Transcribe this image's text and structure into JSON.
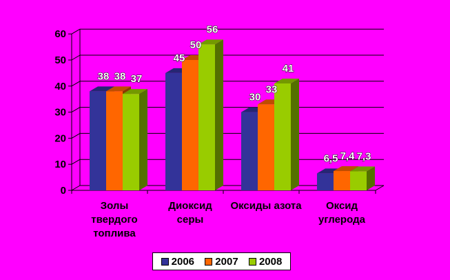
{
  "chart_data": {
    "type": "bar",
    "categories": [
      [
        "Золы",
        "твердого",
        "топлива"
      ],
      [
        "Диоксид",
        "серы"
      ],
      [
        "Оксиды азота"
      ],
      [
        "Оксид",
        "углерода"
      ]
    ],
    "series": [
      {
        "name": "2006",
        "values": [
          38,
          45,
          30,
          6.5
        ],
        "labels": [
          "38",
          "45",
          "30",
          "6,5"
        ],
        "color": "#333399"
      },
      {
        "name": "2007",
        "values": [
          38,
          50,
          33,
          7.4
        ],
        "labels": [
          "38",
          "50",
          "33",
          "7,4"
        ],
        "color": "#FF6600"
      },
      {
        "name": "2008",
        "values": [
          37,
          56,
          41,
          7.3
        ],
        "labels": [
          "37",
          "56",
          "41",
          "7,3"
        ],
        "color": "#99CC00"
      }
    ],
    "ylim": [
      0,
      60
    ],
    "yticks": [
      "0",
      "10",
      "20",
      "30",
      "40",
      "50",
      "60"
    ],
    "grid": true,
    "legend_position": "bottom",
    "background": "#FF00FF"
  }
}
